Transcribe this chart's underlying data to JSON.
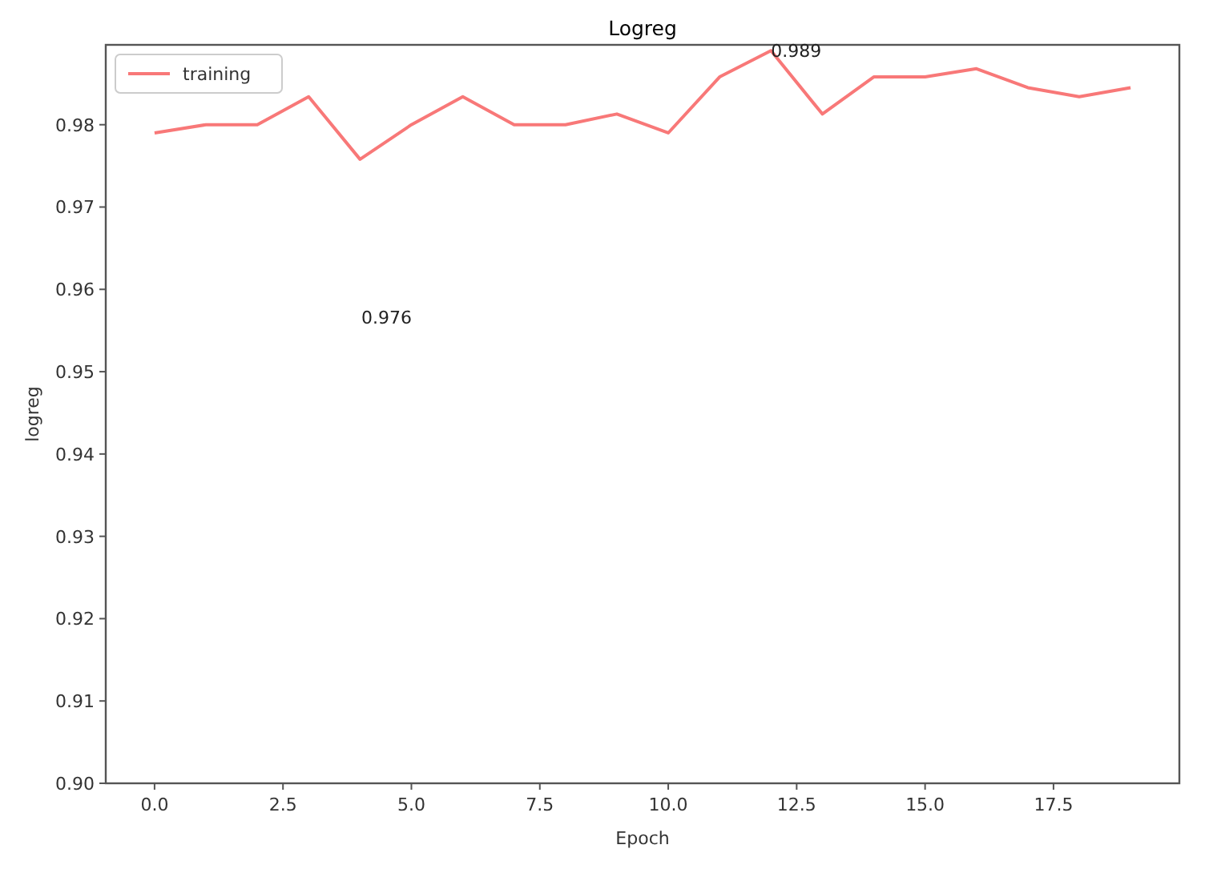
{
  "chart_data": {
    "type": "line",
    "title": "Logreg",
    "xlabel": "Epoch",
    "ylabel": "logreg",
    "x": [
      0,
      1,
      2,
      3,
      4,
      5,
      6,
      7,
      8,
      9,
      10,
      11,
      12,
      13,
      14,
      15,
      16,
      17,
      18,
      19
    ],
    "series": [
      {
        "name": "training",
        "color": "#f87878",
        "values": [
          0.979,
          0.98,
          0.98,
          0.9834,
          0.9758,
          0.98,
          0.9834,
          0.98,
          0.98,
          0.9813,
          0.979,
          0.9858,
          0.989,
          0.9813,
          0.9858,
          0.9858,
          0.9868,
          0.9845,
          0.9834,
          0.9845
        ]
      }
    ],
    "annotations": [
      {
        "text": "0.989",
        "x": 12,
        "y": 0.989
      },
      "0.976"
    ],
    "xlim": [
      -0.95,
      19.95
    ],
    "ylim": [
      0.9,
      0.9897
    ],
    "xticks": [
      {
        "value": 0,
        "label": "0.0"
      },
      {
        "value": 2.5,
        "label": "2.5"
      },
      {
        "value": 5,
        "label": "5.0"
      },
      {
        "value": 7.5,
        "label": "7.5"
      },
      {
        "value": 10,
        "label": "10.0"
      },
      {
        "value": 12.5,
        "label": "12.5"
      },
      {
        "value": 15,
        "label": "15.0"
      },
      {
        "value": 17.5,
        "label": "17.5"
      }
    ],
    "yticks": [
      {
        "value": 0.9,
        "label": "0.90"
      },
      {
        "value": 0.91,
        "label": "0.91"
      },
      {
        "value": 0.92,
        "label": "0.92"
      },
      {
        "value": 0.93,
        "label": "0.93"
      },
      {
        "value": 0.94,
        "label": "0.94"
      },
      {
        "value": 0.95,
        "label": "0.95"
      },
      {
        "value": 0.96,
        "label": "0.96"
      },
      {
        "value": 0.97,
        "label": "0.97"
      },
      {
        "value": 0.98,
        "label": "0.98"
      }
    ],
    "legend": "top left",
    "grid": false,
    "line_style": "solid",
    "marker": "none"
  }
}
